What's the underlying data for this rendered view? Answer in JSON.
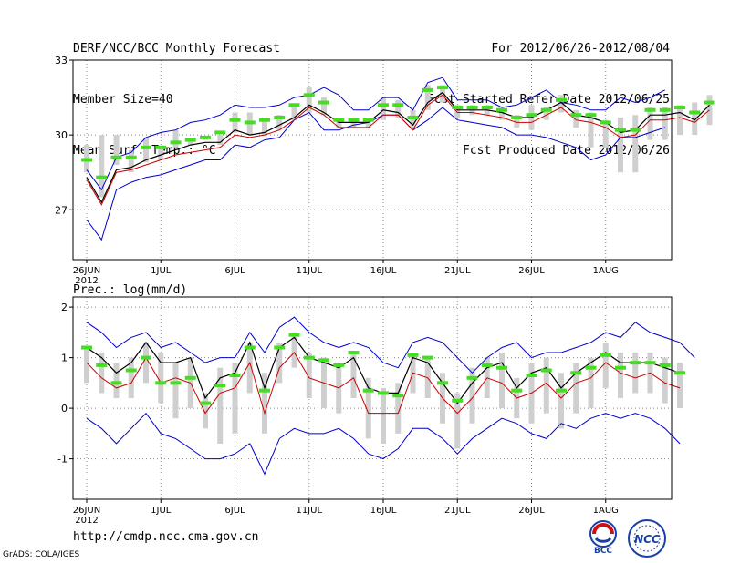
{
  "header": {
    "title": "DERF/NCC/BCC Monthly Forecast",
    "member_size": "Member Size=40",
    "variable": "Mean Surf. Temp.: °C",
    "period": "For 2012/06/26-2012/08/04",
    "started": "Fcst Started Refer Date 2012/06/25",
    "produced": "Fcst Produced Date 2012/06/26"
  },
  "footer": {
    "url": "http://cmdp.ncc.cma.gov.cn",
    "grads": "GrADS: COLA/IGES",
    "logo1_text": "BCC",
    "logo2_text": "NCC"
  },
  "colors": {
    "envelope": "#0000cc",
    "ens_mean": "#000000",
    "second_line": "#cc0000",
    "median_mark": "#44dd22",
    "box": "#cfcfcf",
    "grid": "#888888"
  },
  "chart_data": [
    {
      "type": "line",
      "title": "Mean Surf. Temp.: °C",
      "ylim": [
        25,
        33
      ],
      "yticks": [
        27,
        30,
        33
      ],
      "x_tick_labels": [
        {
          "day": 1,
          "label": "26JUN",
          "sub": "2012"
        },
        {
          "day": 6,
          "label": "1JUL"
        },
        {
          "day": 11,
          "label": "6JUL"
        },
        {
          "day": 16,
          "label": "11JUL"
        },
        {
          "day": 21,
          "label": "16JUL"
        },
        {
          "day": 26,
          "label": "21JUL"
        },
        {
          "day": 31,
          "label": "26JUL"
        },
        {
          "day": 36,
          "label": "1AUG"
        }
      ],
      "series": [
        {
          "name": "max",
          "color": "#0000cc",
          "values": [
            28.6,
            27.8,
            29.1,
            29.3,
            29.9,
            30.1,
            30.2,
            30.5,
            30.6,
            30.8,
            31.2,
            31.1,
            31.1,
            31.2,
            31.5,
            31.6,
            31.9,
            31.6,
            31.0,
            31.0,
            31.5,
            31.5,
            31.0,
            32.1,
            32.3,
            31.4,
            31.4,
            31.4,
            31.1,
            31.2,
            31.5,
            31.8,
            31.3,
            31.2,
            31.0,
            31.0,
            31.5,
            31.3,
            31.5,
            31.8
          ]
        },
        {
          "name": "min",
          "color": "#0000cc",
          "values": [
            26.6,
            25.8,
            27.8,
            28.1,
            28.3,
            28.4,
            28.6,
            28.8,
            29.0,
            29.0,
            29.6,
            29.5,
            29.8,
            29.9,
            30.6,
            30.9,
            30.2,
            30.2,
            30.4,
            30.5,
            30.8,
            30.8,
            30.2,
            30.6,
            31.1,
            30.6,
            30.5,
            30.4,
            30.3,
            30.0,
            30.0,
            29.9,
            29.7,
            29.5,
            29.0,
            29.2,
            29.9,
            29.9,
            30.1,
            30.3
          ]
        },
        {
          "name": "ensemble_mean",
          "color": "#000000",
          "values": [
            28.3,
            27.3,
            28.6,
            28.7,
            29.0,
            29.2,
            29.4,
            29.6,
            29.7,
            29.7,
            30.2,
            30.0,
            30.1,
            30.4,
            30.7,
            31.2,
            30.9,
            30.5,
            30.5,
            30.5,
            31.0,
            30.9,
            30.4,
            31.3,
            31.7,
            31.0,
            31.0,
            31.0,
            30.9,
            30.7,
            30.7,
            31.0,
            31.3,
            30.8,
            30.7,
            30.5,
            30.1,
            30.2,
            30.8,
            30.8,
            30.9,
            30.6,
            31.2
          ]
        },
        {
          "name": "second",
          "color": "#cc0000",
          "values": [
            28.2,
            27.2,
            28.5,
            28.6,
            28.8,
            29.0,
            29.2,
            29.3,
            29.4,
            29.5,
            30.0,
            29.9,
            30.0,
            30.2,
            30.6,
            31.1,
            30.8,
            30.3,
            30.3,
            30.3,
            30.8,
            30.8,
            30.2,
            31.2,
            31.6,
            30.9,
            30.9,
            30.8,
            30.7,
            30.5,
            30.5,
            30.8,
            31.1,
            30.6,
            30.5,
            30.3,
            29.9,
            30.0,
            30.6,
            30.6,
            30.7,
            30.5,
            31.0
          ]
        },
        {
          "name": "box_top",
          "color": "#cfcfcf",
          "values": [
            29.6,
            30.0,
            30.0,
            29.4,
            29.9,
            29.5,
            30.2,
            29.8,
            29.9,
            30.0,
            30.9,
            30.9,
            30.7,
            30.8,
            31.2,
            31.9,
            31.5,
            30.6,
            30.6,
            30.6,
            31.5,
            31.4,
            31.0,
            32.0,
            32.0,
            31.2,
            31.2,
            31.2,
            31.1,
            30.8,
            31.2,
            31.1,
            31.6,
            31.0,
            30.9,
            30.6,
            30.7,
            30.8,
            31.1,
            31.1,
            31.2,
            31.3,
            31.6
          ]
        },
        {
          "name": "box_bottom",
          "color": "#cfcfcf",
          "values": [
            28.5,
            27.5,
            28.8,
            28.5,
            28.9,
            29.0,
            29.5,
            29.6,
            29.8,
            29.6,
            30.1,
            30.0,
            30.0,
            30.2,
            30.6,
            30.9,
            30.8,
            30.3,
            30.3,
            30.3,
            30.6,
            30.7,
            30.2,
            31.0,
            31.3,
            30.7,
            30.8,
            30.8,
            30.6,
            30.3,
            30.2,
            30.6,
            30.9,
            30.3,
            29.5,
            29.5,
            28.5,
            28.5,
            29.8,
            29.8,
            30.0,
            30.0,
            30.4
          ]
        },
        {
          "name": "median",
          "color": "#44dd22",
          "values": [
            29.0,
            28.3,
            29.1,
            29.1,
            29.5,
            29.5,
            29.7,
            29.8,
            29.9,
            30.1,
            30.6,
            30.5,
            30.6,
            30.7,
            31.2,
            31.6,
            31.3,
            30.6,
            30.6,
            30.6,
            31.2,
            31.2,
            30.7,
            31.8,
            31.9,
            31.1,
            31.1,
            31.1,
            31.0,
            30.7,
            30.8,
            31.0,
            31.4,
            30.8,
            30.8,
            30.5,
            30.2,
            30.2,
            31.0,
            31.0,
            31.1,
            30.9,
            31.3
          ]
        }
      ]
    },
    {
      "type": "line",
      "title": "Prec.: log(mm/d)",
      "ylim": [
        -1.8,
        2.2
      ],
      "yticks": [
        -1,
        0,
        1,
        2
      ],
      "x_tick_labels": [
        {
          "day": 1,
          "label": "26JUN",
          "sub": "2012"
        },
        {
          "day": 6,
          "label": "1JUL"
        },
        {
          "day": 11,
          "label": "6JUL"
        },
        {
          "day": 16,
          "label": "11JUL"
        },
        {
          "day": 21,
          "label": "16JUL"
        },
        {
          "day": 26,
          "label": "21JUL"
        },
        {
          "day": 31,
          "label": "26JUL"
        },
        {
          "day": 36,
          "label": "1AUG"
        }
      ],
      "series": [
        {
          "name": "max",
          "color": "#0000cc",
          "values": [
            1.7,
            1.5,
            1.2,
            1.4,
            1.5,
            1.2,
            1.3,
            1.1,
            0.9,
            1.0,
            1.0,
            1.5,
            1.1,
            1.6,
            1.8,
            1.5,
            1.3,
            1.2,
            1.3,
            1.2,
            0.9,
            0.8,
            1.3,
            1.4,
            1.3,
            1.0,
            0.7,
            1.0,
            1.2,
            1.3,
            1.0,
            1.1,
            1.1,
            1.2,
            1.3,
            1.5,
            1.4,
            1.7,
            1.5,
            1.4,
            1.3,
            1.0
          ]
        },
        {
          "name": "min",
          "color": "#0000cc",
          "values": [
            -0.2,
            -0.4,
            -0.7,
            -0.4,
            -0.1,
            -0.5,
            -0.6,
            -0.8,
            -1.0,
            -1.0,
            -0.9,
            -0.7,
            -1.3,
            -0.6,
            -0.4,
            -0.5,
            -0.5,
            -0.4,
            -0.6,
            -0.9,
            -1.0,
            -0.8,
            -0.4,
            -0.4,
            -0.6,
            -0.9,
            -0.6,
            -0.4,
            -0.2,
            -0.3,
            -0.5,
            -0.6,
            -0.3,
            -0.4,
            -0.2,
            -0.1,
            -0.2,
            -0.1,
            -0.2,
            -0.4,
            -0.7
          ]
        },
        {
          "name": "ensemble_mean",
          "color": "#000000",
          "values": [
            1.2,
            1.0,
            0.7,
            0.9,
            1.3,
            0.9,
            0.9,
            1.0,
            0.2,
            0.6,
            0.7,
            1.3,
            0.4,
            1.2,
            1.4,
            1.0,
            0.9,
            0.8,
            1.0,
            0.4,
            0.3,
            0.3,
            1.0,
            0.9,
            0.5,
            0.1,
            0.5,
            0.8,
            0.9,
            0.4,
            0.7,
            0.8,
            0.4,
            0.7,
            0.9,
            1.1,
            0.9,
            0.9,
            0.9,
            0.8,
            0.7
          ]
        },
        {
          "name": "second",
          "color": "#cc0000",
          "values": [
            0.9,
            0.6,
            0.4,
            0.5,
            1.0,
            0.5,
            0.6,
            0.5,
            -0.1,
            0.3,
            0.4,
            0.9,
            -0.1,
            0.8,
            1.1,
            0.6,
            0.5,
            0.4,
            0.6,
            -0.1,
            -0.1,
            -0.1,
            0.7,
            0.6,
            0.2,
            -0.1,
            0.2,
            0.6,
            0.5,
            0.2,
            0.3,
            0.5,
            0.2,
            0.5,
            0.6,
            0.9,
            0.7,
            0.6,
            0.7,
            0.5,
            0.4
          ]
        },
        {
          "name": "box_top",
          "color": "#cfcfcf",
          "values": [
            1.2,
            1.1,
            0.9,
            1.0,
            1.3,
            1.1,
            0.9,
            1.0,
            0.3,
            0.8,
            0.9,
            1.3,
            0.7,
            1.3,
            1.5,
            1.1,
            1.0,
            0.9,
            1.1,
            0.6,
            0.4,
            0.5,
            1.1,
            1.0,
            0.7,
            0.3,
            0.8,
            1.0,
            1.1,
            0.6,
            0.9,
            1.0,
            0.7,
            0.9,
            1.0,
            1.3,
            1.1,
            1.1,
            1.1,
            1.0,
            0.9
          ]
        },
        {
          "name": "box_bottom",
          "color": "#cfcfcf",
          "values": [
            0.5,
            0.3,
            0.2,
            0.2,
            0.5,
            0.1,
            -0.2,
            0.0,
            -0.4,
            -0.7,
            -0.5,
            0.3,
            -0.5,
            0.5,
            0.8,
            0.2,
            0.0,
            -0.1,
            0.2,
            -0.6,
            -0.7,
            -0.5,
            0.3,
            0.2,
            -0.3,
            -0.8,
            -0.3,
            0.2,
            0.0,
            -0.2,
            -0.3,
            -0.1,
            -0.4,
            -0.1,
            0.0,
            0.4,
            0.2,
            0.3,
            0.3,
            0.1,
            0.0
          ]
        },
        {
          "name": "median",
          "color": "#44dd22",
          "values": [
            1.2,
            0.85,
            0.5,
            0.75,
            1.0,
            0.5,
            0.5,
            0.6,
            0.1,
            0.45,
            0.65,
            1.2,
            0.35,
            1.2,
            1.45,
            1.0,
            0.95,
            0.85,
            1.1,
            0.35,
            0.3,
            0.25,
            1.05,
            1.0,
            0.5,
            0.15,
            0.6,
            0.85,
            0.8,
            0.35,
            0.65,
            0.75,
            0.35,
            0.7,
            0.8,
            1.05,
            0.8,
            0.9,
            0.9,
            0.85,
            0.7
          ]
        }
      ]
    }
  ]
}
